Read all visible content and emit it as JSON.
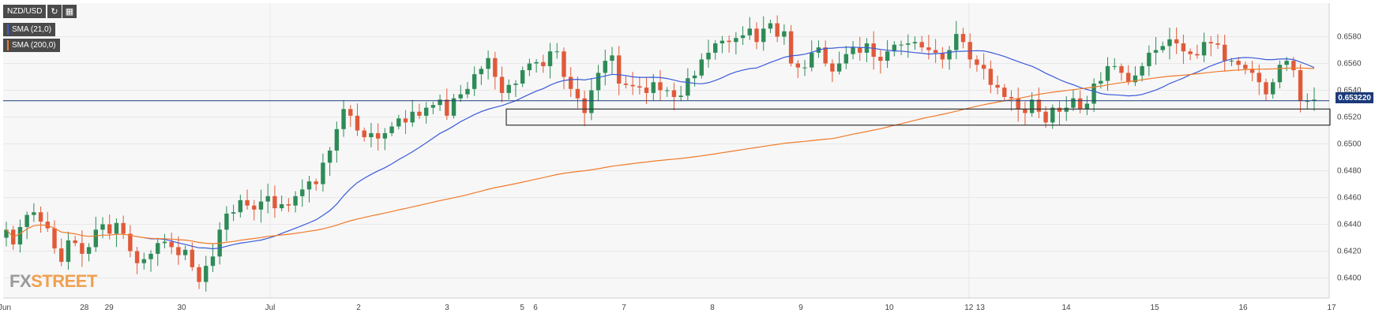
{
  "toolbar": {
    "symbol": "NZD/USD",
    "refresh_icon": "refresh-icon",
    "calendar_icon": "calendar-icon"
  },
  "indicators": [
    {
      "label": "SMA (21,0)",
      "color": "#3a5bd9"
    },
    {
      "label": "SMA (200,0)",
      "color": "#f07a2a"
    }
  ],
  "current_price": "0.653220",
  "watermark": {
    "fx": "FX",
    "street": "STREET"
  },
  "colors": {
    "up": "#2e8b57",
    "down": "#e05a3a",
    "sma21": "#3a5bd9",
    "sma200": "#f07a2a",
    "price_line": "#1c3a7a",
    "grid": "#e8e8e8",
    "bg": "#f7f7f7"
  },
  "chart_data": {
    "type": "candlestick",
    "y_axis": {
      "min": 0.6385,
      "max": 0.6605,
      "ticks": [
        0.64,
        0.642,
        0.644,
        0.646,
        0.648,
        0.65,
        0.652,
        0.654,
        0.656,
        0.658
      ],
      "tick_labels": [
        "0.6400",
        "0.6420",
        "0.6440",
        "0.6460",
        "0.6480",
        "0.6500",
        "0.6520",
        "0.6540",
        "0.6560",
        "0.6580"
      ]
    },
    "x_axis": {
      "labels": [
        "Jun",
        "28",
        "29",
        "30",
        "Jul",
        "2",
        "3",
        "5",
        "6",
        "7",
        "8",
        "9",
        "10",
        "12",
        "13",
        "14",
        "15",
        "16",
        "17"
      ],
      "positions": [
        0.0,
        0.9,
        1.18,
        2.0,
        3.0,
        4.0,
        5.0,
        5.85,
        6.0,
        7.0,
        8.0,
        9.0,
        10.0,
        10.9,
        11.03,
        12.0,
        13.0,
        14.0,
        15.0
      ]
    },
    "zone": {
      "x_start": 5.67,
      "x_end": 15.0,
      "y_low": 0.6514,
      "y_high": 0.6526
    },
    "price_line": 0.65322,
    "closes": [
      0.6436,
      0.6425,
      0.6438,
      0.6447,
      0.6449,
      0.6442,
      0.6437,
      0.6422,
      0.6412,
      0.6428,
      0.6426,
      0.6418,
      0.6423,
      0.6436,
      0.644,
      0.6433,
      0.6441,
      0.6433,
      0.642,
      0.6411,
      0.6414,
      0.6418,
      0.6426,
      0.6427,
      0.6423,
      0.6417,
      0.6421,
      0.6408,
      0.6397,
      0.6409,
      0.6416,
      0.6436,
      0.6448,
      0.6449,
      0.6458,
      0.6454,
      0.6451,
      0.6457,
      0.6461,
      0.6452,
      0.6455,
      0.6454,
      0.6461,
      0.6466,
      0.6472,
      0.647,
      0.6486,
      0.6495,
      0.6511,
      0.6526,
      0.6521,
      0.651,
      0.6505,
      0.6508,
      0.6504,
      0.6508,
      0.6513,
      0.6519,
      0.6516,
      0.6524,
      0.6521,
      0.6527,
      0.6529,
      0.6533,
      0.6521,
      0.6534,
      0.6537,
      0.6541,
      0.6552,
      0.6556,
      0.6564,
      0.655,
      0.6538,
      0.6544,
      0.6545,
      0.6555,
      0.656,
      0.6561,
      0.6558,
      0.6569,
      0.6569,
      0.655,
      0.6541,
      0.6534,
      0.6523,
      0.654,
      0.6553,
      0.6562,
      0.6566,
      0.6545,
      0.6544,
      0.6543,
      0.6542,
      0.6538,
      0.6546,
      0.654,
      0.654,
      0.6535,
      0.6536,
      0.6549,
      0.6551,
      0.6563,
      0.6568,
      0.6575,
      0.6577,
      0.6576,
      0.6579,
      0.6581,
      0.6586,
      0.6576,
      0.6586,
      0.659,
      0.658,
      0.6584,
      0.656,
      0.6557,
      0.6557,
      0.6568,
      0.6572,
      0.656,
      0.6554,
      0.656,
      0.6567,
      0.6572,
      0.6568,
      0.6575,
      0.6565,
      0.6562,
      0.6569,
      0.6574,
      0.6574,
      0.6575,
      0.6576,
      0.6572,
      0.657,
      0.6568,
      0.6563,
      0.657,
      0.6582,
      0.6576,
      0.6563,
      0.6559,
      0.6556,
      0.6544,
      0.6542,
      0.6535,
      0.6534,
      0.6526,
      0.6523,
      0.6533,
      0.6524,
      0.6516,
      0.6527,
      0.6524,
      0.6527,
      0.6534,
      0.6526,
      0.653,
      0.6545,
      0.6547,
      0.6558,
      0.6558,
      0.6553,
      0.6546,
      0.6551,
      0.6558,
      0.6568,
      0.657,
      0.6573,
      0.6578,
      0.6575,
      0.6569,
      0.6567,
      0.6566,
      0.6576,
      0.6575,
      0.6574,
      0.6562,
      0.6562,
      0.6559,
      0.6556,
      0.6553,
      0.6546,
      0.6537,
      0.6546,
      0.6559,
      0.6562,
      0.6555,
      0.6532,
      0.6532,
      0.6533
    ]
  }
}
